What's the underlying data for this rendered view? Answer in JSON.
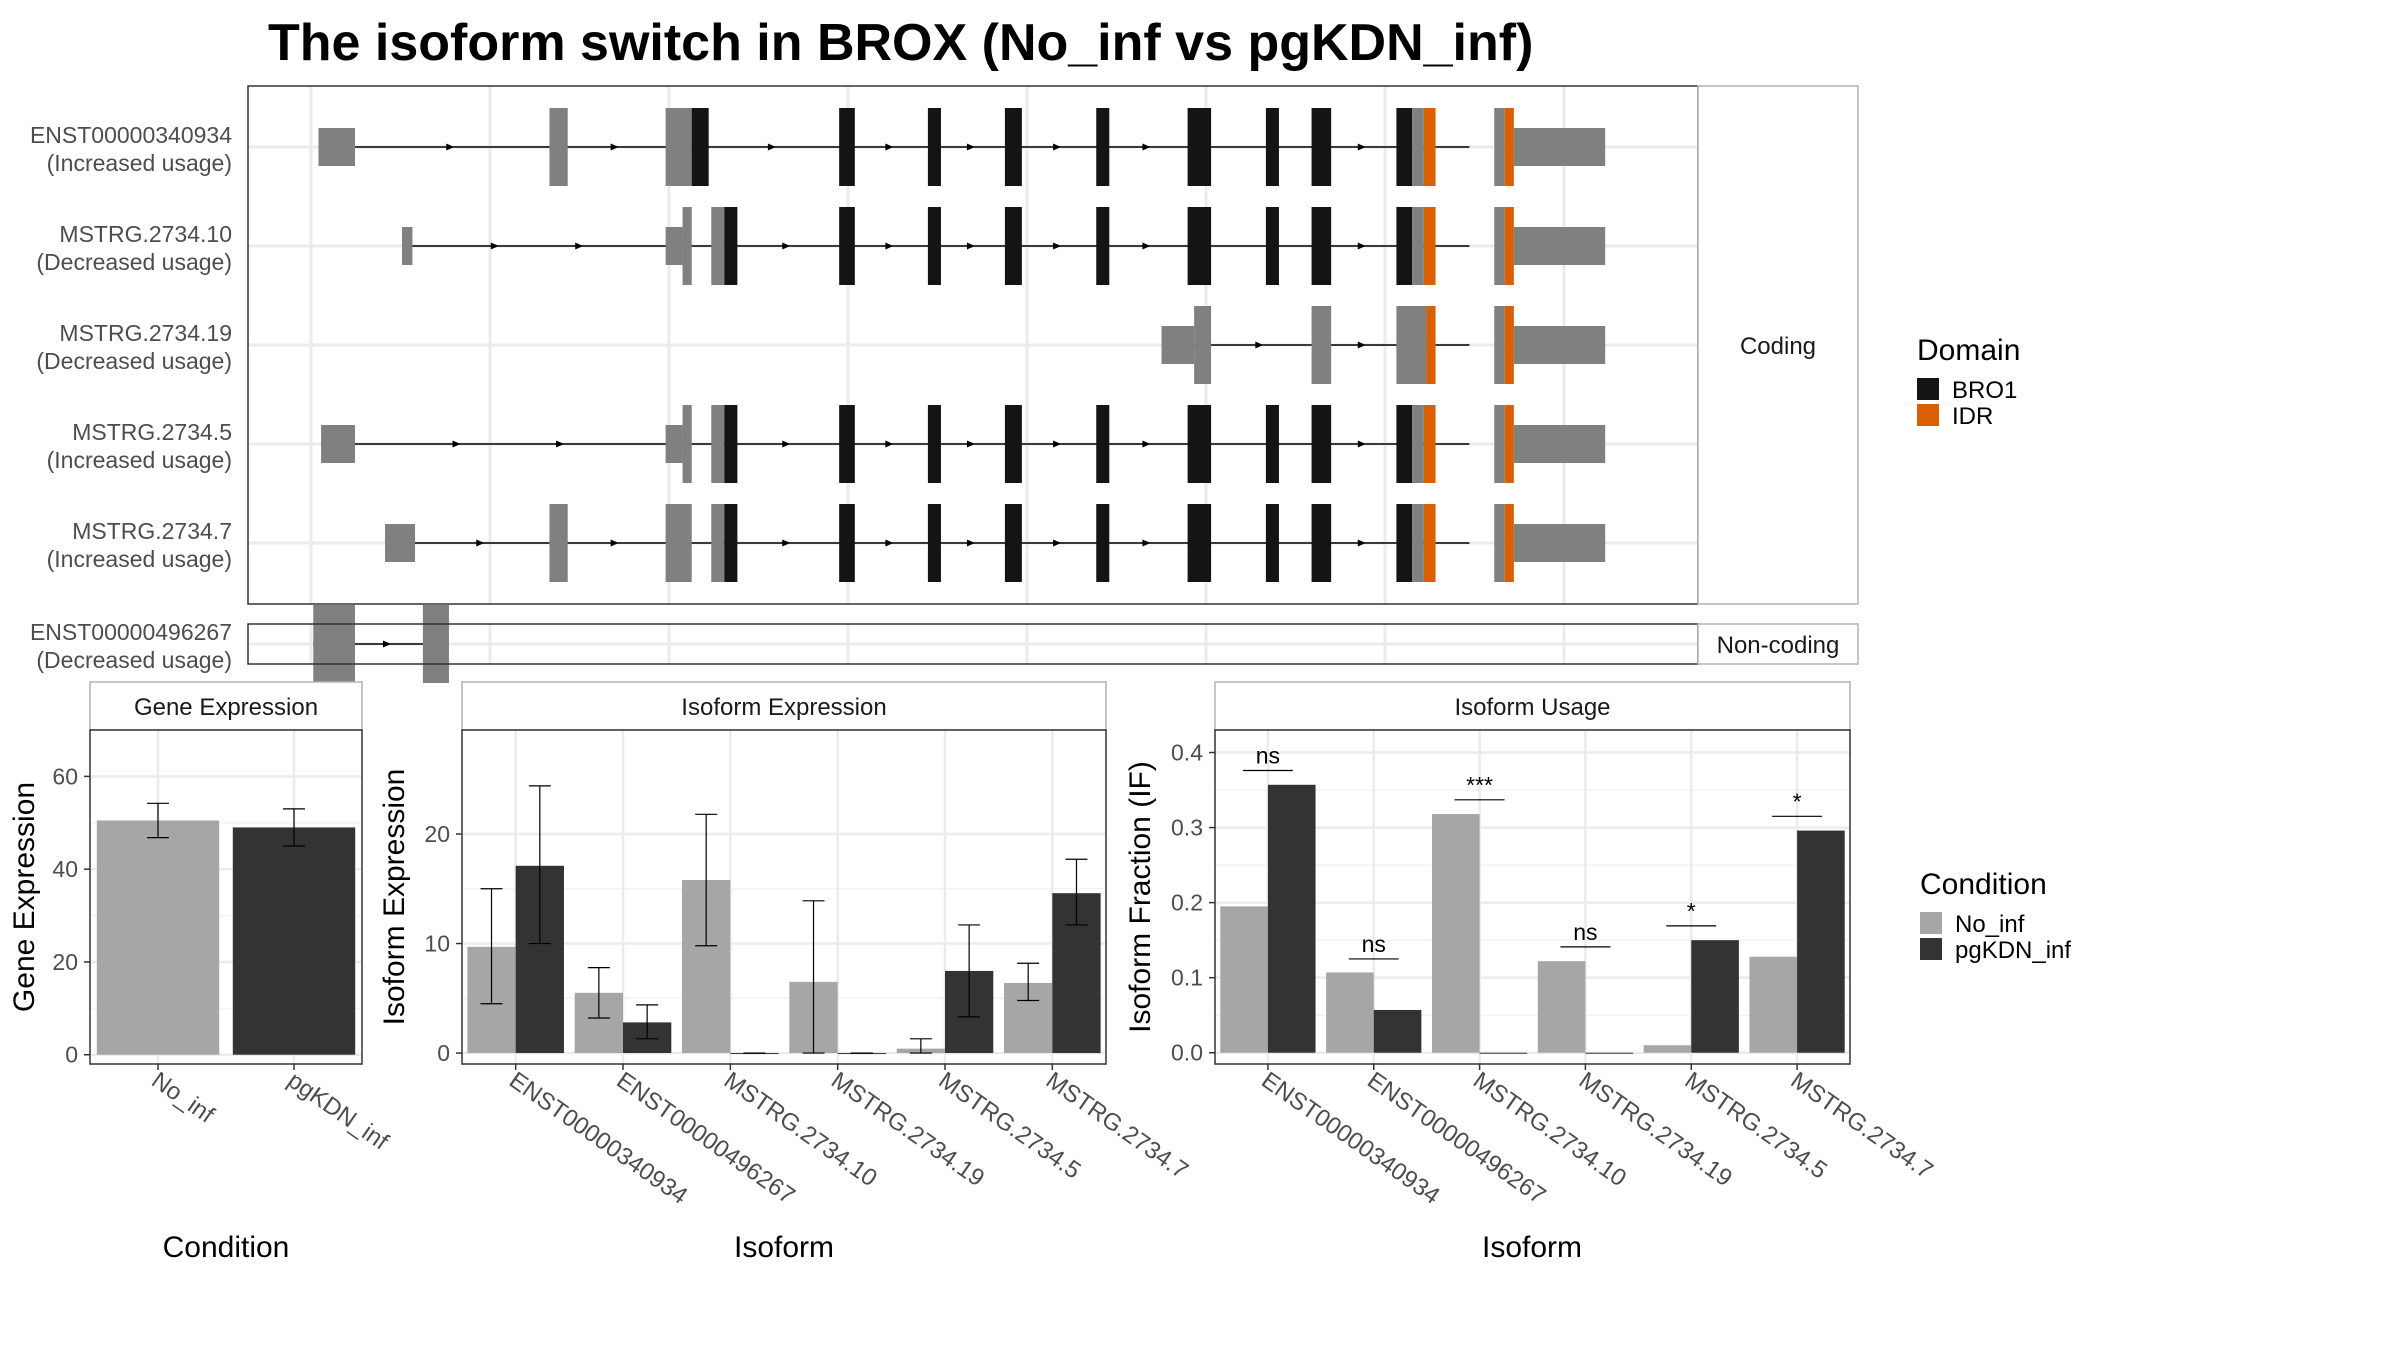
{
  "figure": {
    "title": "The isoform switch in BROX (No_inf vs pgKDN_inf)"
  },
  "colors": {
    "utr": "#808080",
    "bro1": "#141414",
    "idr": "#d95f02",
    "no_inf": "#a6a6a6",
    "pgkdn_inf": "#333333",
    "grid": "#ebebeb",
    "strip_bg": "#ffffff",
    "panel_border": "#333333"
  },
  "legend_domain": {
    "title": "Domain",
    "items": [
      {
        "label": "BRO1",
        "color": "#141414"
      },
      {
        "label": "IDR",
        "color": "#d95f02"
      }
    ]
  },
  "legend_condition": {
    "title": "Condition",
    "items": [
      {
        "label": "No_inf",
        "color": "#a6a6a6"
      },
      {
        "label": "pgKDN_inf",
        "color": "#333333"
      }
    ]
  },
  "structure": {
    "x_range": [
      0,
      100
    ],
    "strip_coding": "Coding",
    "strip_noncoding": "Non-coding",
    "coding": [
      {
        "name": "ENST00000340934",
        "usage": "(Increased usage)",
        "line": [
          5.4,
          93.6
        ],
        "exons": [
          [
            5.4,
            8.2,
            "utr",
            "small"
          ],
          [
            23.1,
            24.5,
            "utr",
            "big"
          ],
          [
            32.0,
            34.0,
            "utr",
            "big"
          ],
          [
            34.0,
            35.3,
            "bro1",
            "big"
          ],
          [
            45.3,
            46.5,
            "bro1",
            "big"
          ],
          [
            52.1,
            53.1,
            "bro1",
            "big"
          ],
          [
            58.0,
            59.3,
            "bro1",
            "big"
          ],
          [
            65.0,
            66.0,
            "bro1",
            "big"
          ],
          [
            72.0,
            73.8,
            "bro1",
            "big"
          ],
          [
            78.0,
            79.0,
            "bro1",
            "big"
          ],
          [
            81.5,
            83.0,
            "bro1",
            "big"
          ],
          [
            88.0,
            89.2,
            "bro1",
            "big"
          ],
          [
            89.2,
            90.1,
            "utr",
            "big"
          ],
          [
            90.1,
            91.0,
            "idr",
            "big"
          ],
          [
            95.5,
            96.3,
            "utr",
            "big"
          ],
          [
            96.3,
            97.0,
            "idr",
            "big"
          ],
          [
            97.0,
            104.0,
            "utr",
            "small"
          ]
        ]
      },
      {
        "name": "MSTRG.2734.10",
        "usage": "(Decreased usage)",
        "line": [
          11.8,
          93.6
        ],
        "exons": [
          [
            11.8,
            12.6,
            "utr",
            "small"
          ],
          [
            32.0,
            33.3,
            "utr",
            "small"
          ],
          [
            33.3,
            34.0,
            "utr",
            "big"
          ],
          [
            35.5,
            36.5,
            "utr",
            "big"
          ],
          [
            36.5,
            37.5,
            "bro1",
            "big"
          ],
          [
            45.3,
            46.5,
            "bro1",
            "big"
          ],
          [
            52.1,
            53.1,
            "bro1",
            "big"
          ],
          [
            58.0,
            59.3,
            "bro1",
            "big"
          ],
          [
            65.0,
            66.0,
            "bro1",
            "big"
          ],
          [
            72.0,
            73.8,
            "bro1",
            "big"
          ],
          [
            78.0,
            79.0,
            "bro1",
            "big"
          ],
          [
            81.5,
            83.0,
            "bro1",
            "big"
          ],
          [
            88.0,
            89.2,
            "bro1",
            "big"
          ],
          [
            89.2,
            90.1,
            "utr",
            "big"
          ],
          [
            90.1,
            91.0,
            "idr",
            "big"
          ],
          [
            95.5,
            96.3,
            "utr",
            "big"
          ],
          [
            96.3,
            97.0,
            "idr",
            "big"
          ],
          [
            97.0,
            104.0,
            "utr",
            "small"
          ]
        ]
      },
      {
        "name": "MSTRG.2734.19",
        "usage": "(Decreased usage)",
        "line": [
          70.0,
          93.6
        ],
        "exons": [
          [
            70.0,
            72.5,
            "utr",
            "small"
          ],
          [
            72.5,
            73.8,
            "utr",
            "big"
          ],
          [
            81.5,
            83.0,
            "utr",
            "big"
          ],
          [
            88.0,
            90.3,
            "utr",
            "big"
          ],
          [
            90.3,
            91.0,
            "idr",
            "big"
          ],
          [
            95.5,
            96.3,
            "utr",
            "big"
          ],
          [
            96.3,
            97.0,
            "idr",
            "big"
          ],
          [
            97.0,
            104.0,
            "utr",
            "small"
          ]
        ]
      },
      {
        "name": "MSTRG.2734.5",
        "usage": "(Increased usage)",
        "line": [
          5.6,
          93.6
        ],
        "exons": [
          [
            5.6,
            8.2,
            "utr",
            "small"
          ],
          [
            32.0,
            33.3,
            "utr",
            "small"
          ],
          [
            33.3,
            34.0,
            "utr",
            "big"
          ],
          [
            35.5,
            36.5,
            "utr",
            "big"
          ],
          [
            36.5,
            37.5,
            "bro1",
            "big"
          ],
          [
            45.3,
            46.5,
            "bro1",
            "big"
          ],
          [
            52.1,
            53.1,
            "bro1",
            "big"
          ],
          [
            58.0,
            59.3,
            "bro1",
            "big"
          ],
          [
            65.0,
            66.0,
            "bro1",
            "big"
          ],
          [
            72.0,
            73.8,
            "bro1",
            "big"
          ],
          [
            78.0,
            79.0,
            "bro1",
            "big"
          ],
          [
            81.5,
            83.0,
            "bro1",
            "big"
          ],
          [
            88.0,
            89.2,
            "bro1",
            "big"
          ],
          [
            89.2,
            90.1,
            "utr",
            "big"
          ],
          [
            90.1,
            91.0,
            "idr",
            "big"
          ],
          [
            95.5,
            96.3,
            "utr",
            "big"
          ],
          [
            96.3,
            97.0,
            "idr",
            "big"
          ],
          [
            97.0,
            104.0,
            "utr",
            "small"
          ]
        ]
      },
      {
        "name": "MSTRG.2734.7",
        "usage": "(Increased usage)",
        "line": [
          10.5,
          93.6
        ],
        "exons": [
          [
            10.5,
            12.8,
            "utr",
            "small"
          ],
          [
            23.1,
            24.5,
            "utr",
            "big"
          ],
          [
            32.0,
            34.0,
            "utr",
            "big"
          ],
          [
            35.5,
            36.5,
            "utr",
            "big"
          ],
          [
            36.5,
            37.5,
            "bro1",
            "big"
          ],
          [
            45.3,
            46.5,
            "bro1",
            "big"
          ],
          [
            52.1,
            53.1,
            "bro1",
            "big"
          ],
          [
            58.0,
            59.3,
            "bro1",
            "big"
          ],
          [
            65.0,
            66.0,
            "bro1",
            "big"
          ],
          [
            72.0,
            73.8,
            "bro1",
            "big"
          ],
          [
            78.0,
            79.0,
            "bro1",
            "big"
          ],
          [
            81.5,
            83.0,
            "bro1",
            "big"
          ],
          [
            88.0,
            89.2,
            "bro1",
            "big"
          ],
          [
            89.2,
            90.1,
            "utr",
            "big"
          ],
          [
            90.1,
            91.0,
            "idr",
            "big"
          ],
          [
            95.5,
            96.3,
            "utr",
            "big"
          ],
          [
            96.3,
            97.0,
            "idr",
            "big"
          ],
          [
            97.0,
            104.0,
            "utr",
            "small"
          ]
        ]
      }
    ],
    "noncoding": [
      {
        "name": "ENST00000496267",
        "usage": "(Decreased usage)",
        "line": [
          5.0,
          15.4
        ],
        "exons": [
          [
            5.0,
            8.2,
            "utr",
            "big"
          ],
          [
            13.4,
            15.4,
            "utr",
            "big"
          ]
        ]
      }
    ]
  },
  "chart_data": [
    {
      "type": "bar",
      "strip": "Gene Expression",
      "xlabel": "Condition",
      "ylabel": "Gene Expression",
      "categories": [
        "No_inf",
        "pgKDN_inf"
      ],
      "values": [
        50.5,
        49.0
      ],
      "errors": [
        [
          46.8,
          54.2
        ],
        [
          45.0,
          53.0
        ]
      ],
      "ylim": [
        -2,
        70
      ],
      "yticks": [
        0,
        20,
        40,
        60
      ],
      "ytick_labels": [
        "0",
        "20",
        "40",
        "60"
      ]
    },
    {
      "type": "bar",
      "strip": "Isoform Expression",
      "xlabel": "Isoform",
      "ylabel": "Isoform Expression",
      "categories": [
        "ENST00000340934",
        "ENST00000496267",
        "MSTRG.2734.10",
        "MSTRG.2734.19",
        "MSTRG.2734.5",
        "MSTRG.2734.7"
      ],
      "series": [
        {
          "name": "No_inf",
          "values": [
            9.7,
            5.5,
            15.8,
            6.5,
            0.4,
            6.4
          ],
          "errors": [
            [
              4.5,
              15.0
            ],
            [
              3.2,
              7.8
            ],
            [
              9.8,
              21.8
            ],
            [
              0.0,
              13.9
            ],
            [
              0.0,
              1.3
            ],
            [
              4.8,
              8.2
            ]
          ]
        },
        {
          "name": "pgKDN_inf",
          "values": [
            17.1,
            2.8,
            0.0,
            0.0,
            7.5,
            14.6
          ],
          "errors": [
            [
              10.0,
              24.4
            ],
            [
              1.3,
              4.4
            ],
            [
              0.0,
              0.0
            ],
            [
              0.0,
              0.0
            ],
            [
              3.3,
              11.7
            ],
            [
              11.7,
              17.7
            ]
          ]
        }
      ],
      "ylim": [
        -1,
        29.5
      ],
      "yticks": [
        0,
        10,
        20
      ],
      "ytick_labels": [
        "0",
        "10",
        "20"
      ]
    },
    {
      "type": "bar",
      "strip": "Isoform Usage",
      "xlabel": "Isoform",
      "ylabel": "Isoform Fraction (IF)",
      "categories": [
        "ENST00000340934",
        "ENST00000496267",
        "MSTRG.2734.10",
        "MSTRG.2734.19",
        "MSTRG.2734.5",
        "MSTRG.2734.7"
      ],
      "series": [
        {
          "name": "No_inf",
          "values": [
            0.195,
            0.107,
            0.318,
            0.122,
            0.01,
            0.128
          ]
        },
        {
          "name": "pgKDN_inf",
          "values": [
            0.357,
            0.057,
            0.0,
            0.0,
            0.15,
            0.296
          ]
        }
      ],
      "significance": [
        {
          "label": "ns",
          "y": 0.376
        },
        {
          "label": "ns",
          "y": 0.125
        },
        {
          "label": "***",
          "y": 0.337
        },
        {
          "label": "ns",
          "y": 0.141
        },
        {
          "label": "*",
          "y": 0.169
        },
        {
          "label": "*",
          "y": 0.315
        }
      ],
      "ylim": [
        -0.015,
        0.43
      ],
      "yticks": [
        0.0,
        0.1,
        0.2,
        0.3,
        0.4
      ],
      "ytick_labels": [
        "0.0",
        "0.1",
        "0.2",
        "0.3",
        "0.4"
      ]
    }
  ]
}
